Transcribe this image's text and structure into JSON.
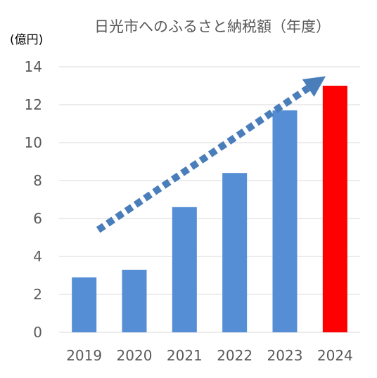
{
  "chart_data": {
    "type": "bar",
    "title": "日光市へのふるさと納税額（年度）",
    "ylabel": "(億円)",
    "xlabel": "",
    "categories": [
      "2019",
      "2020",
      "2021",
      "2022",
      "2023",
      "2024"
    ],
    "values": [
      2.9,
      3.3,
      6.6,
      8.4,
      11.7,
      13.0
    ],
    "ylim": [
      0,
      14
    ],
    "yticks": [
      "0",
      "2",
      "4",
      "6",
      "8",
      "10",
      "12",
      "14"
    ],
    "grid": true,
    "bar_colors": [
      "#558ed5",
      "#558ed5",
      "#558ed5",
      "#558ed5",
      "#558ed5",
      "#ff0000"
    ],
    "annotation": {
      "type": "trend-arrow",
      "style": "dotted",
      "color": "#4a7ebb",
      "from": {
        "x": "2019",
        "y": 5.4
      },
      "to": {
        "x": "2023",
        "y": 13.5
      }
    }
  }
}
